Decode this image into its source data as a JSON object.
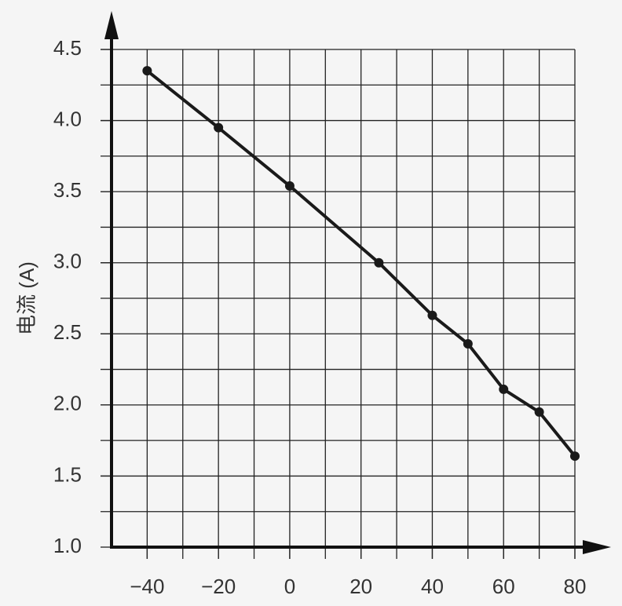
{
  "chart_data": {
    "type": "line",
    "y_label": "电流 (A)",
    "x": [
      -40,
      -20,
      0,
      25,
      40,
      50,
      60,
      70,
      80
    ],
    "series": [
      {
        "name": null,
        "color": "#1a1a1a",
        "values": [
          4.35,
          3.95,
          3.54,
          3.0,
          2.63,
          2.43,
          2.11,
          1.95,
          1.64
        ]
      }
    ],
    "xlim": [
      -50,
      80
    ],
    "ylim": [
      1.0,
      4.5
    ],
    "xticks": [
      {
        "value": -40,
        "label": "−40"
      },
      {
        "value": -20,
        "label": "−20"
      },
      0,
      20,
      40,
      60,
      80
    ],
    "yticks": [
      {
        "value": 1.0,
        "label": "1.0"
      },
      1.5,
      {
        "value": 2.0,
        "label": "2.0"
      },
      2.5,
      {
        "value": 3.0,
        "label": "3.0"
      },
      3.5,
      {
        "value": 4.0,
        "label": "4.0"
      },
      4.5
    ],
    "xgrid": [
      -40,
      -30,
      -20,
      -10,
      0,
      10,
      20,
      30,
      40,
      50,
      60,
      70,
      80
    ],
    "ygrid": [
      1.25,
      1.5,
      1.75,
      2.0,
      2.25,
      2.5,
      2.75,
      3.0,
      3.25,
      3.5,
      3.75,
      4.0,
      4.25,
      4.5
    ],
    "grid": true
  }
}
